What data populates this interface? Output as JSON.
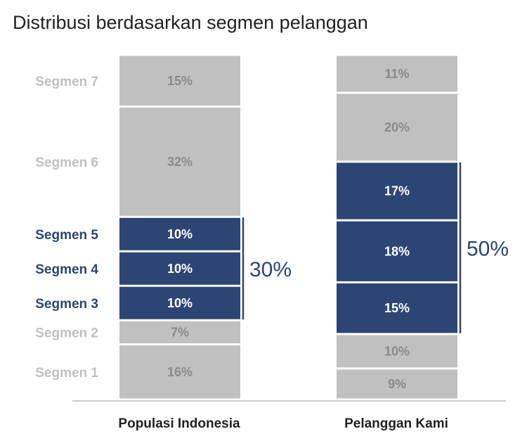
{
  "chart_data": {
    "type": "bar",
    "stacked": true,
    "title": "Distribusi berdasarkan segmen pelanggan",
    "categories": [
      "Populasi Indonesia",
      "Pelanggan Kami"
    ],
    "series": [
      {
        "name": "Segmen 1",
        "values": [
          16,
          9
        ],
        "labels": [
          "16%",
          "9%"
        ]
      },
      {
        "name": "Segmen 2",
        "values": [
          7,
          10
        ],
        "labels": [
          "7%",
          "10%"
        ]
      },
      {
        "name": "Segmen 3",
        "values": [
          10,
          15
        ],
        "labels": [
          "10%",
          "15%"
        ]
      },
      {
        "name": "Segmen 4",
        "values": [
          10,
          18
        ],
        "labels": [
          "10%",
          "18%"
        ]
      },
      {
        "name": "Segmen 5",
        "values": [
          10,
          17
        ],
        "labels": [
          "10%",
          "17%"
        ]
      },
      {
        "name": "Segmen 6",
        "values": [
          32,
          20
        ],
        "labels": [
          "32%",
          "20%"
        ]
      },
      {
        "name": "Segmen 7",
        "values": [
          15,
          11
        ],
        "labels": [
          "15%",
          "11%"
        ]
      }
    ],
    "highlight_segments": [
      "Segmen 3",
      "Segmen 4",
      "Segmen 5"
    ],
    "brackets": [
      {
        "category": "Populasi Indonesia",
        "label": "30%"
      },
      {
        "category": "Pelanggan Kami",
        "label": "50%"
      }
    ],
    "legend": "left",
    "grid": false,
    "colors": {
      "base": "#c0c0c0",
      "highlight": "#2c4573",
      "base_text": "#8a8a8a",
      "highlight_text": "#ffffff",
      "label_muted": "#c0c0c0",
      "label_highlight": "#2c4573",
      "axis": "#cccccc"
    }
  }
}
